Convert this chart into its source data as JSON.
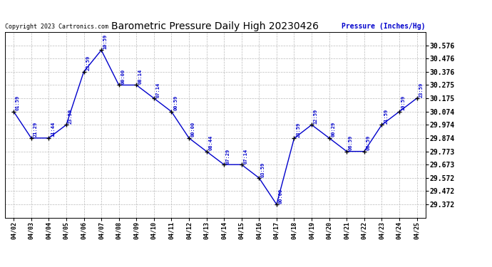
{
  "title": "Barometric Pressure Daily High 20230426",
  "ylabel": "Pressure (Inches/Hg)",
  "copyright": "Copyright 2023 Cartronics.com",
  "line_color": "#0000cc",
  "fig_bg_color": "#ffffff",
  "plot_bg_color": "#ffffff",
  "grid_color": "#bbbbbb",
  "points": [
    {
      "date": "04/02",
      "value": 30.074,
      "time": "01:59"
    },
    {
      "date": "04/03",
      "value": 29.874,
      "time": "21:29"
    },
    {
      "date": "04/04",
      "value": 29.874,
      "time": "11:44"
    },
    {
      "date": "04/05",
      "value": 29.974,
      "time": "23:59"
    },
    {
      "date": "04/06",
      "value": 30.376,
      "time": "23:59"
    },
    {
      "date": "04/07",
      "value": 30.539,
      "time": "10:59"
    },
    {
      "date": "04/08",
      "value": 30.275,
      "time": "00:00"
    },
    {
      "date": "04/09",
      "value": 30.275,
      "time": "08:14"
    },
    {
      "date": "04/10",
      "value": 30.175,
      "time": "07:14"
    },
    {
      "date": "04/11",
      "value": 30.074,
      "time": "00:59"
    },
    {
      "date": "04/12",
      "value": 29.874,
      "time": "00:00"
    },
    {
      "date": "04/13",
      "value": 29.773,
      "time": "08:44"
    },
    {
      "date": "04/14",
      "value": 29.673,
      "time": "07:29"
    },
    {
      "date": "04/15",
      "value": 29.673,
      "time": "07:14"
    },
    {
      "date": "04/16",
      "value": 29.572,
      "time": "03:59"
    },
    {
      "date": "04/17",
      "value": 29.372,
      "time": "00:00"
    },
    {
      "date": "04/18",
      "value": 29.872,
      "time": "23:59"
    },
    {
      "date": "04/19",
      "value": 29.974,
      "time": "12:59"
    },
    {
      "date": "04/20",
      "value": 29.874,
      "time": "00:29"
    },
    {
      "date": "04/21",
      "value": 29.773,
      "time": "06:59"
    },
    {
      "date": "04/22",
      "value": 29.773,
      "time": "06:59"
    },
    {
      "date": "04/23",
      "value": 29.974,
      "time": "21:59"
    },
    {
      "date": "04/24",
      "value": 30.074,
      "time": "10:59"
    },
    {
      "date": "04/25",
      "value": 30.175,
      "time": "23:59"
    }
  ],
  "ylim_min": 29.272,
  "ylim_max": 30.676,
  "yticks": [
    29.372,
    29.472,
    29.572,
    29.673,
    29.773,
    29.874,
    29.974,
    30.074,
    30.175,
    30.275,
    30.376,
    30.476,
    30.576
  ],
  "ytick_labels": [
    "29.372",
    "29.472",
    "29.572",
    "29.673",
    "29.773",
    "29.874",
    "29.974",
    "30.074",
    "30.175",
    "30.275",
    "30.376",
    "30.476",
    "30.576"
  ]
}
